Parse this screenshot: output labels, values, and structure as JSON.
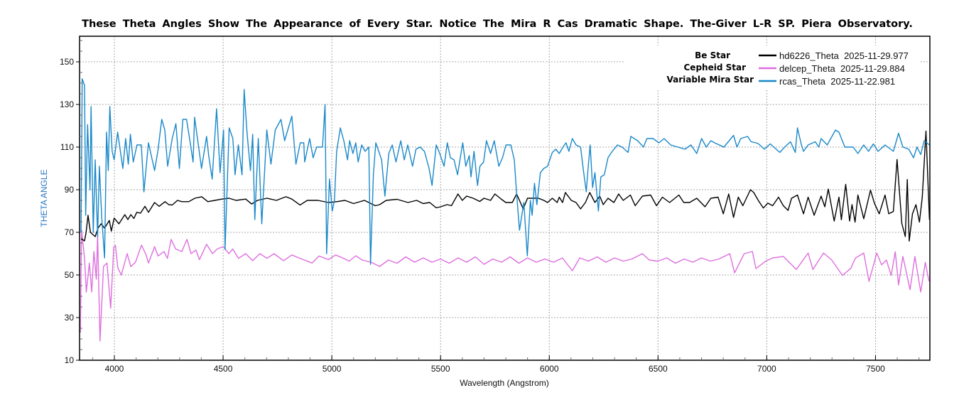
{
  "chart_data": {
    "type": "line",
    "title": "These Theta Angles Show The Appearance of Every Star. Notice The Mira R Cas Dramatic Shape. The-Giver L-R SP. Piera Observatory.",
    "xlabel": "Wavelength (Angstrom)",
    "ylabel": "THETA ANGLE",
    "xlim": [
      3840,
      7750
    ],
    "ylim": [
      10,
      162
    ],
    "x_ticks": [
      4000,
      4500,
      5000,
      5500,
      6000,
      6500,
      7000,
      7500
    ],
    "y_ticks": [
      10,
      30,
      50,
      70,
      90,
      110,
      130,
      150
    ],
    "grid": true,
    "legend_position": "top-right",
    "series": [
      {
        "name": "hd6226_Theta  2025-11-29.977",
        "star_label": "Be Star",
        "color": "#000000",
        "x": [
          3847,
          3863,
          3870,
          3879,
          3890,
          3912,
          3925,
          3939,
          3955,
          3977,
          3986,
          3999,
          4021,
          4048,
          4062,
          4076,
          4090,
          4103,
          4120,
          4141,
          4157,
          4185,
          4206,
          4233,
          4250,
          4266,
          4290,
          4310,
          4342,
          4370,
          4402,
          4430,
          4462,
          4495,
          4527,
          4560,
          4604,
          4631,
          4658,
          4702,
          4745,
          4789,
          4816,
          4854,
          4887,
          4936,
          4985,
          5023,
          5060,
          5100,
          5150,
          5200,
          5220,
          5250,
          5300,
          5350,
          5390,
          5420,
          5450,
          5480,
          5500,
          5530,
          5550,
          5580,
          5600,
          5620,
          5650,
          5680,
          5700,
          5730,
          5750,
          5780,
          5800,
          5830,
          5850,
          5880,
          5900,
          5950,
          5975,
          5992,
          6014,
          6036,
          6046,
          6061,
          6074,
          6101,
          6123,
          6144,
          6166,
          6186,
          6210,
          6232,
          6248,
          6270,
          6297,
          6319,
          6340,
          6373,
          6395,
          6428,
          6466,
          6493,
          6520,
          6553,
          6596,
          6618,
          6645,
          6678,
          6716,
          6743,
          6776,
          6800,
          6825,
          6847,
          6869,
          6890,
          6925,
          6940,
          6962,
          6984,
          7005,
          7027,
          7054,
          7076,
          7098,
          7114,
          7141,
          7169,
          7190,
          7218,
          7250,
          7267,
          7283,
          7310,
          7332,
          7343,
          7363,
          7381,
          7392,
          7406,
          7419,
          7446,
          7477,
          7495,
          7517,
          7544,
          7561,
          7582,
          7599,
          7621,
          7637,
          7646,
          7655,
          7670,
          7686,
          7702,
          7715,
          7732,
          7748
        ],
        "y": [
          67,
          66,
          70,
          78,
          70,
          68,
          72,
          74,
          72,
          75.6,
          70.6,
          76.7,
          74,
          78.3,
          76,
          78.3,
          76.5,
          79.4,
          79,
          82.2,
          79.4,
          84,
          82.2,
          84.4,
          83,
          82.8,
          85,
          84.4,
          84.4,
          86,
          86.7,
          84.4,
          85,
          85.6,
          86,
          85,
          85.6,
          83.3,
          85,
          86,
          85,
          86.7,
          85.6,
          82.8,
          85,
          85,
          84,
          84.4,
          85,
          83.5,
          85,
          82.5,
          83,
          85,
          85.5,
          84,
          85,
          83.5,
          84,
          81.5,
          82,
          83,
          82.5,
          88,
          85,
          87,
          86,
          84.5,
          86,
          85,
          88,
          85.5,
          84,
          84,
          88,
          81,
          86,
          86,
          85,
          84,
          86,
          84,
          86.5,
          84,
          88.7,
          85,
          84,
          81,
          84,
          88.7,
          84,
          87,
          83,
          86,
          84,
          88,
          85,
          87.5,
          82.5,
          87,
          87.5,
          82.5,
          86.5,
          84,
          87.5,
          84,
          84,
          86,
          82,
          86,
          86.5,
          78.7,
          88,
          77,
          86.5,
          82.5,
          90,
          88.7,
          84.8,
          81.4,
          83.7,
          82.5,
          86.5,
          82.5,
          80.3,
          86,
          87.5,
          78.7,
          86.5,
          78,
          87,
          82,
          90.3,
          75.3,
          86.5,
          75.9,
          92.5,
          75.3,
          83,
          74.8,
          87.5,
          76.4,
          89.8,
          83.7,
          78.7,
          87.5,
          78.7,
          79.8,
          104.2,
          74.2,
          68,
          94.8,
          65.9,
          78.7,
          83,
          74.8,
          86.5,
          117.5,
          75.9
        ]
      },
      {
        "name": "delcep_Theta  2025-11-29.884",
        "star_label": "Cepheid Star",
        "color": "#de6fde",
        "x": [
          3844,
          3849,
          3863,
          3871,
          3885,
          3896,
          3906,
          3917,
          3923,
          3934,
          3950,
          3966,
          3983,
          3997,
          4005,
          4016,
          4032,
          4059,
          4076,
          4097,
          4125,
          4146,
          4157,
          4185,
          4201,
          4228,
          4244,
          4261,
          4282,
          4310,
          4334,
          4353,
          4375,
          4391,
          4424,
          4451,
          4473,
          4500,
          4527,
          4544,
          4571,
          4604,
          4636,
          4669,
          4702,
          4734,
          4778,
          4816,
          4854,
          4909,
          4941,
          4985,
          5017,
          5050,
          5080,
          5110,
          5140,
          5180,
          5200,
          5220,
          5260,
          5300,
          5340,
          5380,
          5420,
          5460,
          5500,
          5540,
          5580,
          5620,
          5660,
          5700,
          5740,
          5780,
          5820,
          5860,
          5900,
          5940,
          5980,
          6020,
          6060,
          6106,
          6140,
          6180,
          6220,
          6260,
          6300,
          6340,
          6380,
          6428,
          6460,
          6500,
          6540,
          6580,
          6620,
          6660,
          6700,
          6740,
          6780,
          6830,
          6852,
          6896,
          6934,
          6950,
          6994,
          7027,
          7076,
          7136,
          7190,
          7212,
          7261,
          7299,
          7348,
          7386,
          7408,
          7446,
          7470,
          7506,
          7528,
          7550,
          7572,
          7591,
          7606,
          7626,
          7659,
          7681,
          7708,
          7729,
          7746
        ],
        "y": [
          23,
          71,
          58,
          42,
          55.6,
          42,
          61,
          48,
          69,
          19,
          54,
          55.6,
          34.4,
          63,
          63.9,
          53.3,
          50,
          60,
          53.9,
          56,
          64,
          59.4,
          55.6,
          63.3,
          58.9,
          61,
          57.8,
          66.7,
          62.2,
          61,
          66.7,
          60,
          61.7,
          57.2,
          64.4,
          60,
          62.2,
          63.3,
          60,
          62.2,
          57.8,
          60,
          56.7,
          60,
          57.8,
          60,
          56.7,
          59.4,
          57.8,
          55.6,
          58.9,
          57.2,
          59.4,
          58,
          56.5,
          59,
          57,
          56,
          55,
          54,
          57,
          55.5,
          58.5,
          56,
          58,
          56,
          57.5,
          55.5,
          58,
          56,
          58.5,
          55,
          57.5,
          56,
          58.5,
          55.5,
          58,
          56,
          57.5,
          56,
          58,
          52,
          58,
          56.5,
          58.5,
          56,
          58,
          56.5,
          57.5,
          60,
          57,
          56.5,
          58,
          55.5,
          57.5,
          56,
          58,
          56.5,
          57.5,
          60,
          51,
          60,
          61,
          53,
          56.4,
          58,
          58.7,
          52.6,
          60.3,
          52.6,
          60.3,
          57,
          49.8,
          53.1,
          58,
          60.3,
          47,
          60.3,
          54.8,
          57,
          49.8,
          60.9,
          45.3,
          58.7,
          43.1,
          58.7,
          42,
          55.9,
          47
        ]
      },
      {
        "name": "rcas_Theta  2025-11-22.981",
        "star_label": "Variable Mira Star",
        "color": "#1a88c9",
        "x": [
          3847,
          3852,
          3863,
          3868,
          3877,
          3888,
          3893,
          3903,
          3912,
          3923,
          3931,
          3942,
          3955,
          3964,
          3972,
          3979,
          3990,
          3999,
          4015,
          4039,
          4052,
          4064,
          4074,
          4087,
          4104,
          4124,
          4136,
          4157,
          4185,
          4200,
          4218,
          4232,
          4245,
          4266,
          4283,
          4299,
          4315,
          4332,
          4349,
          4362,
          4369,
          4401,
          4424,
          4434,
          4450,
          4470,
          4486,
          4502,
          4509,
          4528,
          4545,
          4555,
          4570,
          4587,
          4597,
          4610,
          4626,
          4636,
          4646,
          4662,
          4678,
          4701,
          4720,
          4740,
          4766,
          4783,
          4816,
          4835,
          4855,
          4871,
          4875,
          4898,
          4914,
          4930,
          4957,
          4969,
          4976,
          4989,
          5002,
          5012,
          5022,
          5039,
          5055,
          5072,
          5082,
          5097,
          5110,
          5121,
          5137,
          5153,
          5170,
          5178,
          5191,
          5202,
          5219,
          5229,
          5244,
          5262,
          5278,
          5295,
          5317,
          5333,
          5349,
          5371,
          5387,
          5406,
          5426,
          5447,
          5461,
          5480,
          5496,
          5516,
          5531,
          5545,
          5562,
          5578,
          5602,
          5616,
          5632,
          5640,
          5654,
          5670,
          5681,
          5698,
          5711,
          5730,
          5747,
          5768,
          5785,
          5801,
          5823,
          5839,
          5850,
          5863,
          5883,
          5899,
          5913,
          5921,
          5932,
          5943,
          5959,
          5975,
          5992,
          6014,
          6030,
          6046,
          6063,
          6077,
          6090,
          6106,
          6123,
          6144,
          6157,
          6170,
          6179,
          6188,
          6199,
          6210,
          6226,
          6237,
          6253,
          6270,
          6286,
          6313,
          6335,
          6362,
          6375,
          6406,
          6433,
          6449,
          6477,
          6504,
          6528,
          6558,
          6591,
          6624,
          6651,
          6678,
          6700,
          6722,
          6743,
          6760,
          6803,
          6847,
          6863,
          6880,
          6912,
          6928,
          6950,
          6962,
          6989,
          7016,
          7060,
          7082,
          7109,
          7131,
          7141,
          7158,
          7169,
          7190,
          7223,
          7239,
          7250,
          7278,
          7316,
          7332,
          7359,
          7397,
          7419,
          7446,
          7468,
          7490,
          7512,
          7544,
          7582,
          7606,
          7626,
          7653,
          7675,
          7691,
          7708,
          7724,
          7748
        ],
        "y": [
          70,
          142,
          139,
          78,
          120.5,
          90,
          129,
          70,
          104,
          68,
          101,
          77,
          58,
          117,
          99,
          129,
          108,
          104,
          117,
          100,
          114,
          102,
          116,
          103,
          111,
          111,
          89,
          112,
          99,
          108,
          123,
          118,
          101,
          114,
          121,
          100,
          123,
          123,
          112,
          103,
          124,
          100,
          115,
          106,
          95,
          128,
          98,
          118,
          62,
          119,
          114,
          97,
          111,
          97,
          137,
          117,
          99,
          116,
          76,
          114,
          74,
          118,
          102,
          118,
          123,
          113,
          124.5,
          102,
          112,
          112,
          103,
          114,
          105,
          110,
          110,
          130,
          60,
          95,
          80,
          85,
          108,
          119,
          113,
          104,
          113,
          107,
          112,
          103,
          111,
          108,
          110,
          55,
          97,
          112,
          107,
          104,
          87,
          107,
          111,
          103,
          113,
          104,
          111,
          101,
          109,
          110,
          108,
          100,
          92,
          111,
          107,
          101,
          112,
          105,
          104,
          97,
          112,
          101,
          106,
          96,
          108,
          92,
          101,
          103,
          113,
          107,
          113,
          101,
          105,
          111,
          111,
          104,
          88,
          71,
          84,
          59,
          85,
          78,
          93,
          83,
          98,
          100,
          101,
          107.5,
          109,
          107,
          110,
          112,
          108,
          114,
          111,
          110,
          99,
          89,
          101,
          111,
          91,
          98,
          80,
          96,
          97,
          105,
          107.5,
          111,
          110,
          107.5,
          115,
          113,
          110,
          114,
          114,
          112,
          114,
          111,
          110,
          109,
          111,
          107,
          114,
          110,
          113,
          112,
          110,
          115.5,
          110,
          114,
          115,
          112.5,
          112,
          111.5,
          109,
          111.5,
          107.5,
          110,
          112.5,
          107.5,
          119,
          111.5,
          108,
          111,
          112.5,
          110,
          114,
          111,
          118,
          117,
          110,
          110,
          107,
          111,
          108,
          111.5,
          108,
          111,
          108,
          116.5,
          110,
          109,
          105,
          110,
          106.5,
          113,
          111
        ]
      }
    ]
  }
}
